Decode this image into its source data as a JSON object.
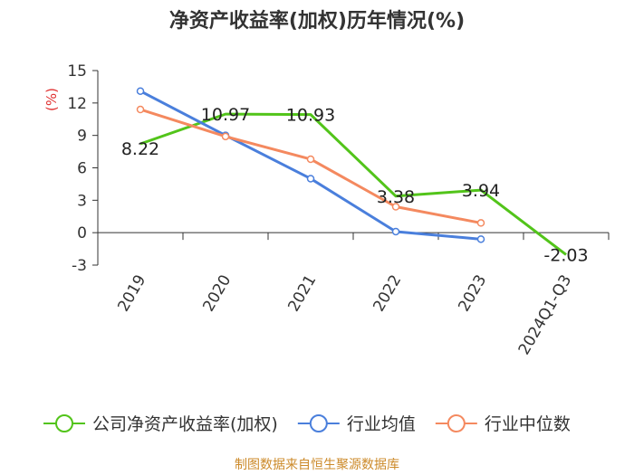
{
  "chart_data": {
    "type": "line",
    "title": "净资产收益率(加权)历年情况(%)",
    "y_unit": "(%)",
    "categories": [
      "2019",
      "2020",
      "2021",
      "2022",
      "2023",
      "2024Q1-Q3"
    ],
    "ylim": [
      -3,
      15
    ],
    "yticks": [
      -3,
      0,
      3,
      6,
      9,
      12,
      15
    ],
    "grid": false,
    "legend_position": "bottom",
    "series": [
      {
        "name": "公司净资产收益率(加权)",
        "color": "#52c41a",
        "values": [
          8.22,
          10.97,
          10.93,
          3.38,
          3.94,
          -2.03
        ],
        "labels": [
          "8.22",
          "10.97",
          "10.93",
          "3.38",
          "3.94",
          "-2.03"
        ],
        "marker": "none"
      },
      {
        "name": "行业均值",
        "color": "#4a7fdc",
        "values": [
          13.1,
          9.0,
          5.0,
          0.1,
          -0.6,
          null
        ],
        "marker": "circle"
      },
      {
        "name": "行业中位数",
        "color": "#f4895f",
        "values": [
          11.4,
          8.9,
          6.8,
          2.4,
          0.9,
          null
        ],
        "marker": "circle"
      }
    ]
  },
  "source": "制图数据来自恒生聚源数据库"
}
